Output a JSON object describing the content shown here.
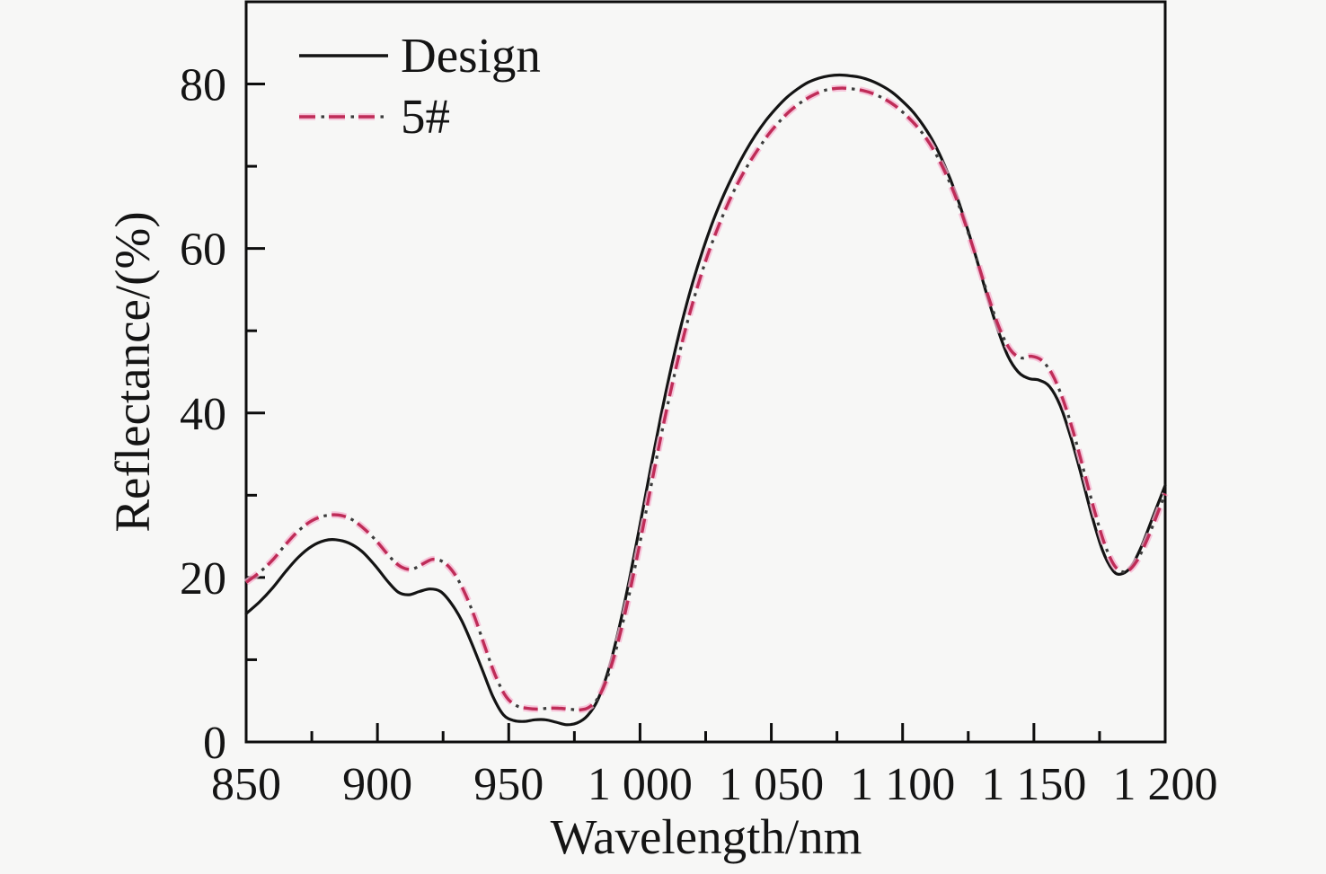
{
  "chart_data": {
    "type": "line",
    "title": "",
    "xlabel": "Wavelength/nm",
    "ylabel": "Reflectance/(%)",
    "xlim": [
      850,
      1200
    ],
    "ylim": [
      0,
      90
    ],
    "grid": false,
    "legend_position": "upper-left",
    "x_major_ticks": [
      850,
      900,
      950,
      1000,
      1050,
      1100,
      1150,
      1200
    ],
    "x_tick_labels": [
      "850",
      "900",
      "950",
      "1 000",
      "1 050",
      "1 100",
      "1 150",
      "1 200"
    ],
    "x_minor_ticks": [
      875,
      925,
      975,
      1025,
      1075,
      1125,
      1175
    ],
    "y_major_ticks": [
      0,
      20,
      40,
      60,
      80
    ],
    "y_tick_labels": [
      "0",
      "20",
      "40",
      "60",
      "80"
    ],
    "y_minor_ticks": [
      10,
      30,
      50,
      70
    ],
    "axis_color": "#0d0d0d",
    "series": [
      {
        "name": "Design",
        "style": "solid",
        "color": "#141414",
        "points": [
          [
            850,
            15.6
          ],
          [
            855,
            17.0
          ],
          [
            860,
            18.7
          ],
          [
            865,
            20.7
          ],
          [
            870,
            22.5
          ],
          [
            875,
            23.8
          ],
          [
            880,
            24.5
          ],
          [
            884,
            24.6
          ],
          [
            889,
            24.2
          ],
          [
            894,
            23.2
          ],
          [
            899,
            21.5
          ],
          [
            904,
            19.5
          ],
          [
            908,
            18.2
          ],
          [
            912,
            17.9
          ],
          [
            916,
            18.3
          ],
          [
            920,
            18.6
          ],
          [
            924,
            18.3
          ],
          [
            928,
            16.9
          ],
          [
            932,
            14.8
          ],
          [
            936,
            11.9
          ],
          [
            940,
            8.7
          ],
          [
            944,
            5.5
          ],
          [
            948,
            3.3
          ],
          [
            952,
            2.6
          ],
          [
            956,
            2.5
          ],
          [
            960,
            2.7
          ],
          [
            964,
            2.7
          ],
          [
            968,
            2.4
          ],
          [
            972,
            2.1
          ],
          [
            976,
            2.3
          ],
          [
            980,
            3.2
          ],
          [
            984,
            5.2
          ],
          [
            988,
            8.8
          ],
          [
            992,
            13.8
          ],
          [
            996,
            19.8
          ],
          [
            1000,
            26.4
          ],
          [
            1004,
            33.2
          ],
          [
            1008,
            39.7
          ],
          [
            1012,
            45.7
          ],
          [
            1016,
            51.1
          ],
          [
            1020,
            55.8
          ],
          [
            1024,
            59.9
          ],
          [
            1028,
            63.5
          ],
          [
            1032,
            66.6
          ],
          [
            1036,
            69.3
          ],
          [
            1040,
            71.7
          ],
          [
            1044,
            73.8
          ],
          [
            1048,
            75.6
          ],
          [
            1052,
            77.1
          ],
          [
            1056,
            78.4
          ],
          [
            1060,
            79.4
          ],
          [
            1064,
            80.2
          ],
          [
            1068,
            80.7
          ],
          [
            1072,
            81.0
          ],
          [
            1076,
            81.1
          ],
          [
            1080,
            81.0
          ],
          [
            1084,
            80.8
          ],
          [
            1088,
            80.4
          ],
          [
            1092,
            79.8
          ],
          [
            1096,
            79.0
          ],
          [
            1100,
            77.9
          ],
          [
            1104,
            76.6
          ],
          [
            1108,
            74.9
          ],
          [
            1112,
            72.8
          ],
          [
            1116,
            70.1
          ],
          [
            1120,
            66.9
          ],
          [
            1124,
            63.1
          ],
          [
            1128,
            58.9
          ],
          [
            1132,
            54.5
          ],
          [
            1136,
            50.4
          ],
          [
            1140,
            47.0
          ],
          [
            1144,
            45.0
          ],
          [
            1148,
            44.2
          ],
          [
            1152,
            44.0
          ],
          [
            1156,
            43.2
          ],
          [
            1160,
            40.9
          ],
          [
            1164,
            37.1
          ],
          [
            1168,
            32.5
          ],
          [
            1172,
            27.6
          ],
          [
            1176,
            23.4
          ],
          [
            1180,
            20.9
          ],
          [
            1183,
            20.4
          ],
          [
            1187,
            21.3
          ],
          [
            1191,
            23.8
          ],
          [
            1195,
            27.1
          ],
          [
            1200,
            31.2
          ]
        ]
      },
      {
        "name": "5#",
        "style": "dash-dot",
        "color": "#bf2c58",
        "halo_color": "#f6b3cf",
        "dot_color": "#3c3c3c",
        "points": [
          [
            850,
            19.4
          ],
          [
            855,
            20.6
          ],
          [
            860,
            22.1
          ],
          [
            865,
            24.0
          ],
          [
            870,
            25.7
          ],
          [
            875,
            26.9
          ],
          [
            880,
            27.5
          ],
          [
            885,
            27.6
          ],
          [
            890,
            27.1
          ],
          [
            895,
            25.9
          ],
          [
            900,
            24.3
          ],
          [
            905,
            22.4
          ],
          [
            909,
            21.3
          ],
          [
            913,
            21.0
          ],
          [
            917,
            21.6
          ],
          [
            921,
            22.2
          ],
          [
            925,
            21.9
          ],
          [
            929,
            20.6
          ],
          [
            933,
            18.3
          ],
          [
            937,
            15.2
          ],
          [
            941,
            11.5
          ],
          [
            945,
            8.0
          ],
          [
            949,
            5.5
          ],
          [
            953,
            4.4
          ],
          [
            957,
            4.1
          ],
          [
            961,
            4.0
          ],
          [
            965,
            4.1
          ],
          [
            969,
            4.1
          ],
          [
            973,
            4.0
          ],
          [
            977,
            3.9
          ],
          [
            981,
            4.3
          ],
          [
            985,
            5.9
          ],
          [
            989,
            9.2
          ],
          [
            993,
            13.9
          ],
          [
            997,
            19.6
          ],
          [
            1001,
            25.9
          ],
          [
            1005,
            32.4
          ],
          [
            1009,
            38.7
          ],
          [
            1013,
            44.5
          ],
          [
            1017,
            49.8
          ],
          [
            1021,
            54.4
          ],
          [
            1025,
            58.5
          ],
          [
            1029,
            62.0
          ],
          [
            1033,
            65.1
          ],
          [
            1037,
            67.8
          ],
          [
            1041,
            70.1
          ],
          [
            1045,
            72.1
          ],
          [
            1049,
            73.9
          ],
          [
            1053,
            75.4
          ],
          [
            1057,
            76.7
          ],
          [
            1061,
            77.7
          ],
          [
            1065,
            78.5
          ],
          [
            1069,
            79.1
          ],
          [
            1073,
            79.4
          ],
          [
            1077,
            79.5
          ],
          [
            1081,
            79.4
          ],
          [
            1085,
            79.2
          ],
          [
            1089,
            78.8
          ],
          [
            1093,
            78.2
          ],
          [
            1097,
            77.4
          ],
          [
            1101,
            76.3
          ],
          [
            1105,
            75.0
          ],
          [
            1109,
            73.4
          ],
          [
            1113,
            71.3
          ],
          [
            1117,
            68.7
          ],
          [
            1121,
            65.6
          ],
          [
            1125,
            61.9
          ],
          [
            1129,
            57.9
          ],
          [
            1133,
            53.8
          ],
          [
            1137,
            50.2
          ],
          [
            1141,
            47.7
          ],
          [
            1145,
            46.7
          ],
          [
            1149,
            46.9
          ],
          [
            1153,
            46.4
          ],
          [
            1157,
            44.7
          ],
          [
            1161,
            41.7
          ],
          [
            1165,
            37.7
          ],
          [
            1169,
            33.0
          ],
          [
            1173,
            28.2
          ],
          [
            1177,
            24.0
          ],
          [
            1181,
            21.3
          ],
          [
            1185,
            20.7
          ],
          [
            1189,
            21.9
          ],
          [
            1193,
            24.5
          ],
          [
            1197,
            27.7
          ],
          [
            1200,
            30.2
          ]
        ]
      }
    ]
  },
  "legend": {
    "items": [
      {
        "label": "Design"
      },
      {
        "label": "5#"
      }
    ]
  }
}
